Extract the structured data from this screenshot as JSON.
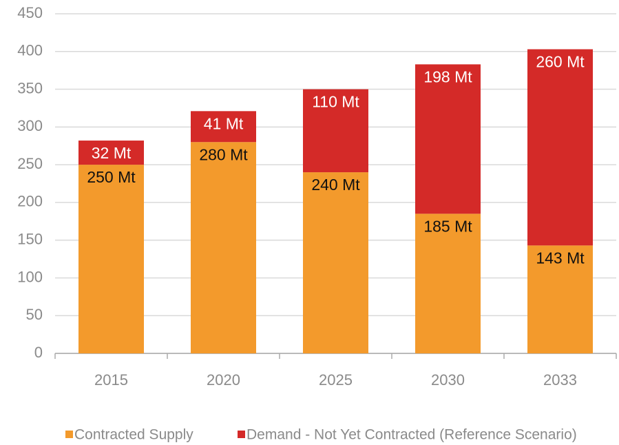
{
  "chart_data": {
    "type": "stacked_bar",
    "categories": [
      "2015",
      "2020",
      "2025",
      "2030",
      "2033"
    ],
    "series": [
      {
        "name": "Contracted Supply",
        "color": "#f39a2c",
        "values": [
          250,
          280,
          240,
          185,
          143
        ],
        "value_labels": [
          "250 Mt",
          "280 Mt",
          "240 Mt",
          "185 Mt",
          "143 Mt"
        ]
      },
      {
        "name": "Demand - Not Yet Contracted (Reference Scenario)",
        "color": "#d42a28",
        "values": [
          32,
          41,
          110,
          198,
          260
        ],
        "value_labels": [
          "32 Mt",
          "41 Mt",
          "110 Mt",
          "198 Mt",
          "260 Mt"
        ]
      }
    ],
    "ylim": [
      0,
      450
    ],
    "yticks": [
      0,
      50,
      100,
      150,
      200,
      250,
      300,
      350,
      400,
      450
    ],
    "grid": true
  }
}
